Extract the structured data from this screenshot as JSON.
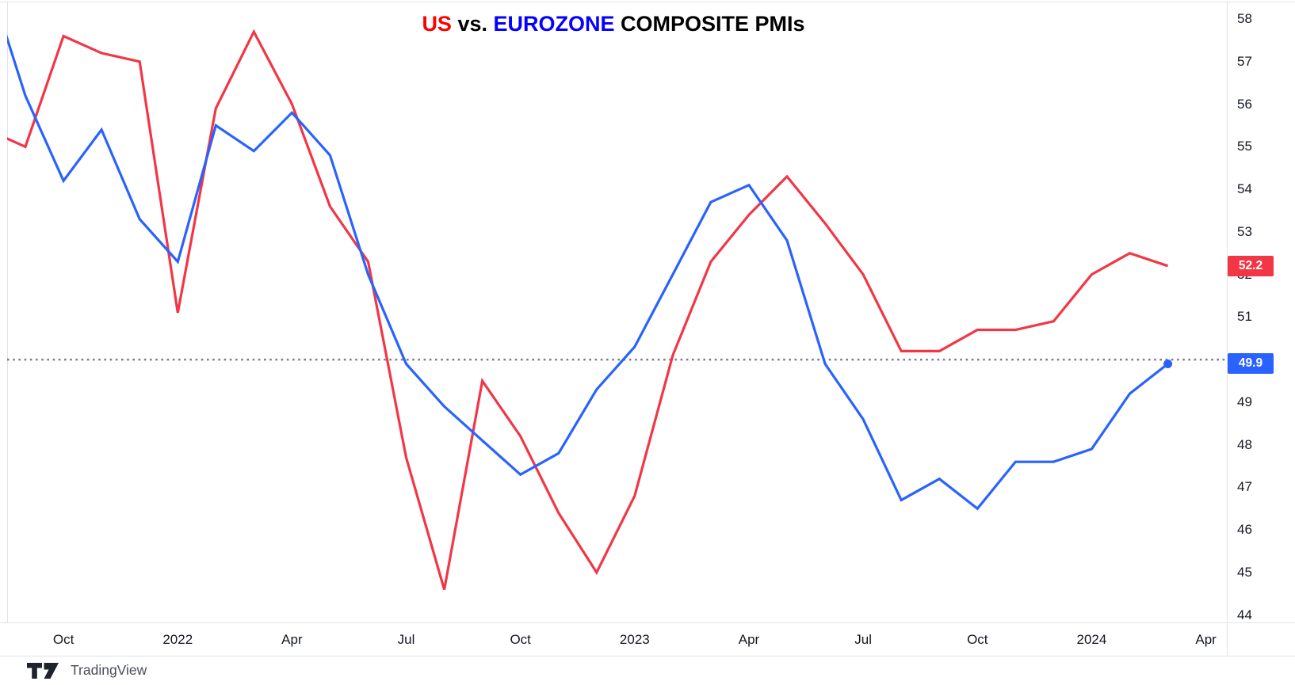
{
  "title": {
    "part_us": "US",
    "part_vs": " vs. ",
    "part_eurozone": "EUROZONE",
    "part_rest": " COMPOSITE PMIs"
  },
  "colors": {
    "us_line": "#f23645",
    "eurozone_line": "#2962ff",
    "title_us": "#fe0000",
    "title_eurozone": "#0500ff",
    "axis_text": "#131722",
    "border": "#e0e3eb",
    "reference_line": "#7a7e87",
    "badge_text": "#ffffff"
  },
  "watermark": {
    "brand": "TradingView"
  },
  "chart_data": {
    "type": "line",
    "title": "US vs. EUROZONE COMPOSITE PMIs",
    "xlabel": "",
    "ylabel": "",
    "grid": "off",
    "legend_position": "none",
    "x": [
      "Aug 2021",
      "Sep 2021",
      "Oct 2021",
      "Nov 2021",
      "Dec 2021",
      "Jan 2022",
      "Feb 2022",
      "Mar 2022",
      "Apr 2022",
      "May 2022",
      "Jun 2022",
      "Jul 2022",
      "Aug 2022",
      "Sep 2022",
      "Oct 2022",
      "Nov 2022",
      "Dec 2022",
      "Jan 2023",
      "Feb 2023",
      "Mar 2023",
      "Apr 2023",
      "May 2023",
      "Jun 2023",
      "Jul 2023",
      "Aug 2023",
      "Sep 2023",
      "Oct 2023",
      "Nov 2023",
      "Dec 2023",
      "Jan 2024",
      "Feb 2024",
      "Mar 2024"
    ],
    "series": [
      {
        "id": "us",
        "name": "US Composite PMI",
        "color": "#f23645",
        "end_marker": false,
        "values": [
          55.4,
          55.0,
          57.6,
          57.2,
          57.0,
          51.1,
          55.9,
          57.7,
          56.0,
          53.6,
          52.3,
          47.7,
          44.6,
          49.5,
          48.2,
          46.4,
          45.0,
          46.8,
          50.1,
          52.3,
          53.4,
          54.3,
          53.2,
          52.0,
          50.2,
          50.2,
          50.7,
          50.7,
          50.9,
          52.0,
          52.5,
          52.2
        ]
      },
      {
        "id": "eurozone",
        "name": "Eurozone Composite PMI",
        "color": "#2962ff",
        "end_marker": true,
        "values": [
          59.0,
          56.2,
          54.2,
          55.4,
          53.3,
          52.3,
          55.5,
          54.9,
          55.8,
          54.8,
          52.0,
          49.9,
          48.9,
          48.1,
          47.3,
          47.8,
          49.3,
          50.3,
          52.0,
          53.7,
          54.1,
          52.8,
          49.9,
          48.6,
          46.7,
          47.2,
          46.5,
          47.6,
          47.6,
          47.9,
          49.2,
          49.9
        ]
      }
    ],
    "reference_line_value": 50.0,
    "y_axis": {
      "ticks": [
        58,
        57,
        56,
        55,
        54,
        53,
        52,
        51,
        50,
        49,
        48,
        47,
        46,
        45,
        44
      ],
      "range": [
        43.9,
        58.4
      ]
    },
    "x_axis": {
      "ticks": [
        {
          "label": "Oct",
          "index": 2
        },
        {
          "label": "2022",
          "index": 5
        },
        {
          "label": "Apr",
          "index": 8
        },
        {
          "label": "Jul",
          "index": 11
        },
        {
          "label": "Oct",
          "index": 14
        },
        {
          "label": "2023",
          "index": 17
        },
        {
          "label": "Apr",
          "index": 20
        },
        {
          "label": "Jul",
          "index": 23
        },
        {
          "label": "Oct",
          "index": 26
        },
        {
          "label": "2024",
          "index": 29
        },
        {
          "label": "Apr",
          "index": 32
        }
      ]
    },
    "last_value_labels": {
      "us": "52.2",
      "eurozone": "49.9"
    }
  }
}
